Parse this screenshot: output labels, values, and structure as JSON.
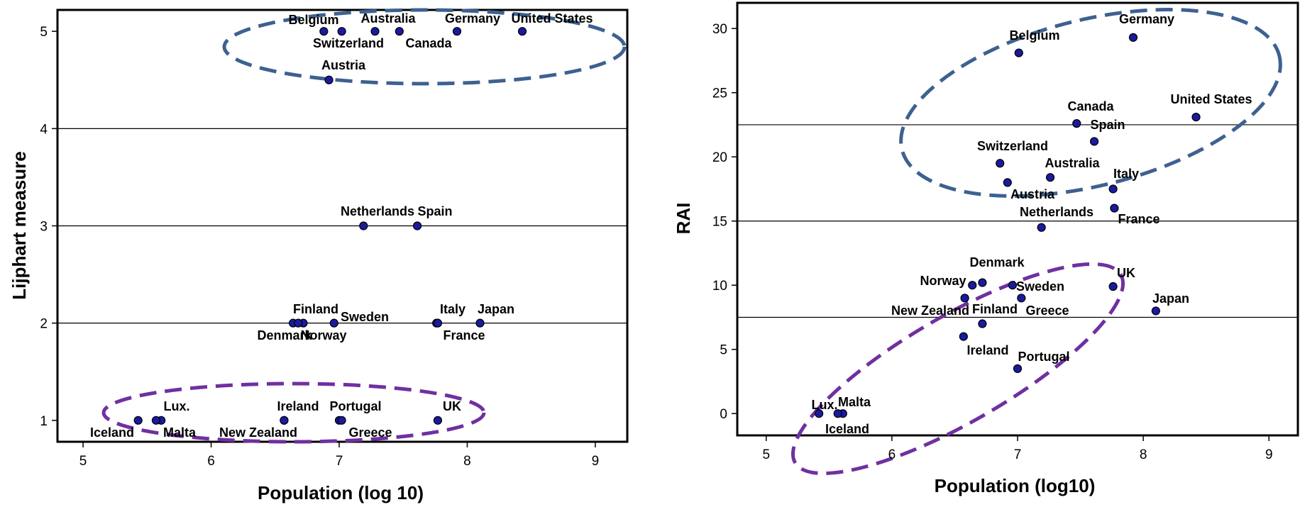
{
  "chart_data": [
    {
      "type": "scatter",
      "xlabel": "Population (log 10)",
      "ylabel": "Lijphart measure",
      "xlim": [
        4.8,
        9.25
      ],
      "ylim": [
        0.78,
        5.22
      ],
      "xticks": [
        "5",
        "6",
        "7",
        "8",
        "9"
      ],
      "yticks": [
        "1",
        "2",
        "3",
        "4",
        "5"
      ],
      "reference_lines_y": [
        2,
        3,
        4
      ],
      "points": [
        {
          "label": "Belgium",
          "x": 7.02,
          "y": 5
        },
        {
          "label": "Switzerland",
          "x": 6.88,
          "y": 5
        },
        {
          "label": "Australia",
          "x": 7.28,
          "y": 5
        },
        {
          "label": "Canada",
          "x": 7.47,
          "y": 5
        },
        {
          "label": "Germany",
          "x": 7.92,
          "y": 5
        },
        {
          "label": "United States",
          "x": 8.43,
          "y": 5
        },
        {
          "label": "Austria",
          "x": 6.92,
          "y": 4.5
        },
        {
          "label": "Netherlands",
          "x": 7.19,
          "y": 3
        },
        {
          "label": "Spain",
          "x": 7.61,
          "y": 3
        },
        {
          "label": "Finland",
          "x": 6.72,
          "y": 2
        },
        {
          "label": "Denmark",
          "x": 6.64,
          "y": 2
        },
        {
          "label": "Norway",
          "x": 6.68,
          "y": 2
        },
        {
          "label": "Sweden",
          "x": 6.96,
          "y": 2
        },
        {
          "label": "Italy",
          "x": 7.76,
          "y": 2
        },
        {
          "label": "France",
          "x": 7.77,
          "y": 2
        },
        {
          "label": "Japan",
          "x": 8.1,
          "y": 2
        },
        {
          "label": "Iceland",
          "x": 5.43,
          "y": 1
        },
        {
          "label": "Lux.",
          "x": 5.61,
          "y": 1
        },
        {
          "label": "Malta",
          "x": 5.57,
          "y": 1
        },
        {
          "label": "New Zealand",
          "x": 6.57,
          "y": 1
        },
        {
          "label": "Ireland",
          "x": 6.57,
          "y": 1
        },
        {
          "label": "Portugal",
          "x": 7.0,
          "y": 1
        },
        {
          "label": "Greece",
          "x": 7.02,
          "y": 1
        },
        {
          "label": "UK",
          "x": 7.77,
          "y": 1
        }
      ],
      "ellipses": [
        {
          "group": "top",
          "color": "#3d6190"
        },
        {
          "group": "bottom",
          "color": "#7030a0"
        }
      ]
    },
    {
      "type": "scatter",
      "xlabel": "Population (log10)",
      "ylabel": "RAI",
      "xlim": [
        4.77,
        9.23
      ],
      "ylim": [
        -1.7,
        32
      ],
      "xticks": [
        "5",
        "6",
        "7",
        "8",
        "9"
      ],
      "yticks": [
        "0",
        "5",
        "10",
        "15",
        "20",
        "25",
        "30"
      ],
      "reference_lines_y": [
        7.5,
        15,
        22.5
      ],
      "points": [
        {
          "label": "Germany",
          "x": 7.92,
          "y": 29.3
        },
        {
          "label": "Belgium",
          "x": 7.01,
          "y": 28.1
        },
        {
          "label": "Canada",
          "x": 7.47,
          "y": 22.6
        },
        {
          "label": "United States",
          "x": 8.42,
          "y": 23.1
        },
        {
          "label": "Spain",
          "x": 7.61,
          "y": 21.2
        },
        {
          "label": "Switzerland",
          "x": 6.86,
          "y": 19.5
        },
        {
          "label": "Australia",
          "x": 7.26,
          "y": 18.4
        },
        {
          "label": "Austria",
          "x": 6.92,
          "y": 18
        },
        {
          "label": "Italy",
          "x": 7.76,
          "y": 17.5
        },
        {
          "label": "France",
          "x": 7.77,
          "y": 16
        },
        {
          "label": "Netherlands",
          "x": 7.19,
          "y": 14.5
        },
        {
          "label": "Denmark",
          "x": 6.72,
          "y": 10.2
        },
        {
          "label": "Norway",
          "x": 6.64,
          "y": 10
        },
        {
          "label": "Sweden",
          "x": 6.96,
          "y": 10
        },
        {
          "label": "UK",
          "x": 7.76,
          "y": 9.9
        },
        {
          "label": "New Zealand",
          "x": 6.58,
          "y": 9
        },
        {
          "label": "Greece",
          "x": 7.03,
          "y": 9
        },
        {
          "label": "Japan",
          "x": 8.1,
          "y": 8
        },
        {
          "label": "Finland",
          "x": 6.72,
          "y": 7
        },
        {
          "label": "Ireland",
          "x": 6.57,
          "y": 6
        },
        {
          "label": "Portugal",
          "x": 7.0,
          "y": 3.5
        },
        {
          "label": "Lux.",
          "x": 5.42,
          "y": 0
        },
        {
          "label": "Malta",
          "x": 5.61,
          "y": 0
        },
        {
          "label": "Iceland",
          "x": 5.57,
          "y": 0
        }
      ],
      "ellipses": [
        {
          "group": "top",
          "color": "#3d6190"
        },
        {
          "group": "bottom",
          "color": "#7030a0"
        }
      ]
    }
  ]
}
